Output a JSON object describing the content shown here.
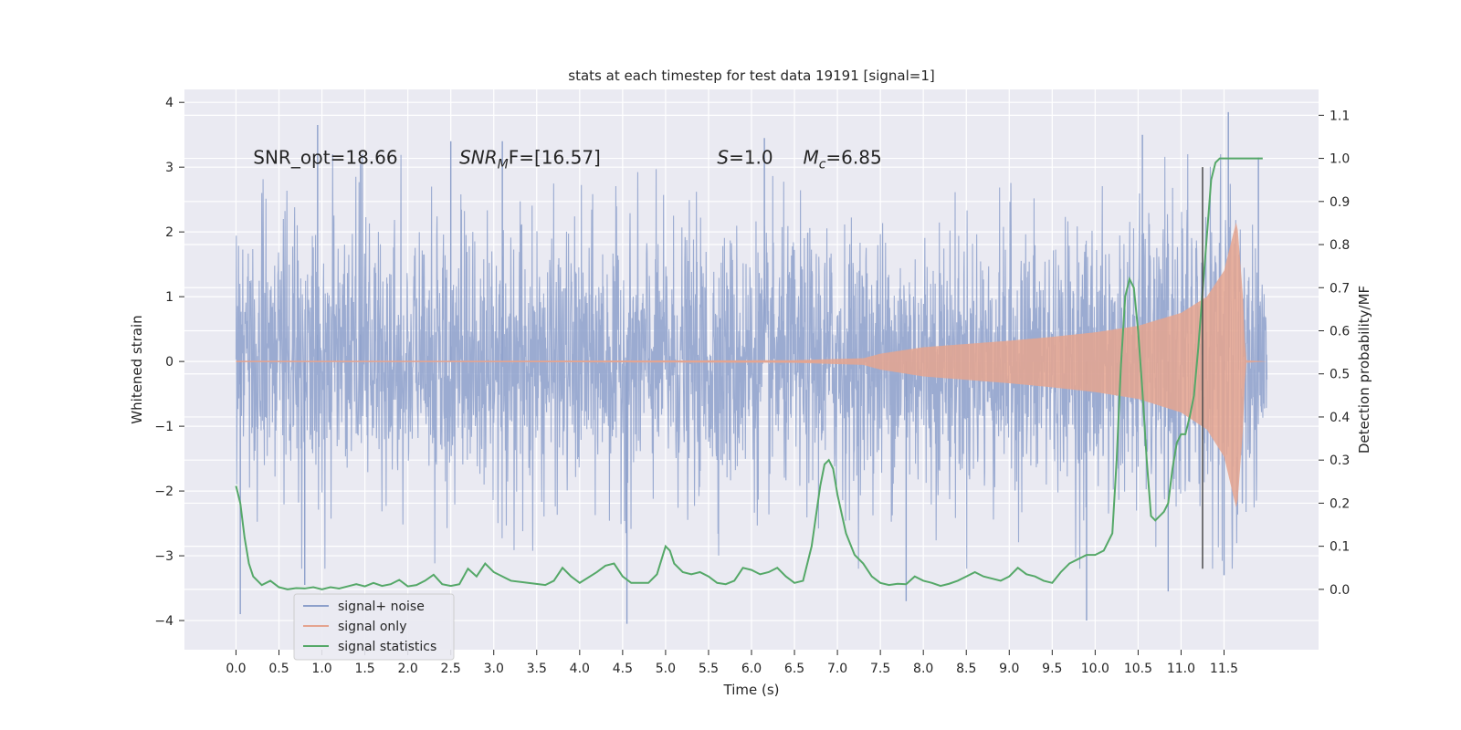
{
  "chart_data": {
    "type": "line",
    "title": "stats at each timestep for test data 19191 [signal=1]",
    "xlabel": "Time (s)",
    "ylabel": "Whitened strain",
    "y2label": "Detection probability/MF",
    "xlim": [
      -0.6,
      12.6
    ],
    "ylim": [
      -4.45,
      4.2
    ],
    "y2lim": [
      -0.14,
      1.16
    ],
    "x_ticks": [
      "0.0",
      "0.5",
      "1.0",
      "1.5",
      "2.0",
      "2.5",
      "3.0",
      "3.5",
      "4.0",
      "4.5",
      "5.0",
      "5.5",
      "6.0",
      "6.5",
      "7.0",
      "7.5",
      "8.0",
      "8.5",
      "9.0",
      "9.5",
      "10.0",
      "10.5",
      "11.0",
      "11.5"
    ],
    "y_ticks": [
      "−4",
      "−3",
      "−2",
      "−1",
      "0",
      "1",
      "2",
      "3",
      "4"
    ],
    "y2_ticks": [
      "0.0",
      "0.1",
      "0.2",
      "0.3",
      "0.4",
      "0.5",
      "0.6",
      "0.7",
      "0.8",
      "0.9",
      "1.0",
      "1.1"
    ],
    "grid": true,
    "legend_position": "lower-left",
    "annotations": [
      {
        "text": "SNR_opt=18.66",
        "x": 0.2,
        "y": 3.05
      },
      {
        "text_main": "SNR",
        "text_sub": "M",
        "text_rest": "F=[16.57]",
        "x": 2.6,
        "y": 3.05
      },
      {
        "text_main": "S",
        "text_rest": "=1.0",
        "x": 5.6,
        "y": 3.05
      },
      {
        "text_main": "M",
        "text_sub": "c",
        "text_rest": "=6.85",
        "x": 6.6,
        "y": 3.05
      }
    ],
    "vline": {
      "x": 11.25,
      "y_range": [
        -3.2,
        3.0
      ],
      "color": "#4c4c4c"
    },
    "series": [
      {
        "name": "signal+ noise",
        "color": "#8da0cb",
        "axis": "left",
        "description_range": [
          0.0,
          12.0
        ],
        "noise_amplitude": 1.0,
        "peaks_max": [
          [
            0.95,
            3.65
          ],
          [
            1.45,
            3.05
          ],
          [
            2.5,
            3.4
          ],
          [
            3.1,
            3.4
          ],
          [
            6.15,
            3.45
          ],
          [
            10.55,
            3.5
          ],
          [
            11.55,
            3.85
          ],
          [
            11.9,
            3.15
          ]
        ],
        "peaks_min": [
          [
            0.05,
            -3.9
          ],
          [
            0.8,
            -3.45
          ],
          [
            4.55,
            -4.05
          ],
          [
            7.8,
            -3.7
          ],
          [
            9.9,
            -4.0
          ],
          [
            10.85,
            -3.55
          ],
          [
            11.5,
            -3.3
          ]
        ]
      },
      {
        "name": "signal only",
        "color": "#e5a48f",
        "axis": "left",
        "envelope": [
          [
            0.0,
            0.0
          ],
          [
            6.5,
            0.02
          ],
          [
            7.3,
            0.05
          ],
          [
            7.5,
            0.12
          ],
          [
            8.0,
            0.22
          ],
          [
            8.5,
            0.27
          ],
          [
            9.0,
            0.32
          ],
          [
            9.5,
            0.38
          ],
          [
            10.0,
            0.45
          ],
          [
            10.5,
            0.55
          ],
          [
            11.0,
            0.75
          ],
          [
            11.3,
            1.0
          ],
          [
            11.5,
            1.4
          ],
          [
            11.65,
            2.2
          ],
          [
            11.72,
            1.0
          ],
          [
            11.75,
            0.02
          ],
          [
            12.0,
            0.0
          ]
        ]
      },
      {
        "name": "signal statistics",
        "color": "#55a868",
        "axis": "right",
        "x": [
          0.0,
          0.05,
          0.1,
          0.15,
          0.2,
          0.3,
          0.4,
          0.5,
          0.6,
          0.7,
          0.8,
          0.9,
          1.0,
          1.1,
          1.2,
          1.3,
          1.4,
          1.5,
          1.6,
          1.7,
          1.8,
          1.9,
          2.0,
          2.1,
          2.2,
          2.3,
          2.4,
          2.5,
          2.6,
          2.7,
          2.8,
          2.9,
          3.0,
          3.2,
          3.4,
          3.6,
          3.7,
          3.8,
          3.9,
          4.0,
          4.2,
          4.3,
          4.4,
          4.5,
          4.6,
          4.8,
          4.9,
          5.0,
          5.05,
          5.1,
          5.2,
          5.3,
          5.4,
          5.5,
          5.6,
          5.7,
          5.8,
          5.9,
          6.0,
          6.1,
          6.2,
          6.3,
          6.4,
          6.5,
          6.6,
          6.7,
          6.8,
          6.85,
          6.9,
          6.95,
          7.0,
          7.1,
          7.2,
          7.3,
          7.4,
          7.5,
          7.6,
          7.7,
          7.8,
          7.9,
          8.0,
          8.1,
          8.2,
          8.3,
          8.4,
          8.5,
          8.6,
          8.7,
          8.8,
          8.9,
          9.0,
          9.1,
          9.2,
          9.3,
          9.4,
          9.5,
          9.6,
          9.7,
          9.8,
          9.9,
          10.0,
          10.1,
          10.2,
          10.25,
          10.3,
          10.35,
          10.4,
          10.45,
          10.5,
          10.55,
          10.6,
          10.65,
          10.7,
          10.8,
          10.85,
          10.9,
          10.95,
          11.0,
          11.05,
          11.1,
          11.15,
          11.2,
          11.25,
          11.3,
          11.35,
          11.4,
          11.45,
          11.5,
          11.6,
          11.7,
          11.8,
          11.9,
          11.95
        ],
        "values": [
          0.24,
          0.2,
          0.12,
          0.06,
          0.03,
          0.01,
          0.02,
          0.005,
          0.0,
          0.003,
          0.002,
          0.005,
          0.0,
          0.005,
          0.002,
          0.007,
          0.012,
          0.007,
          0.015,
          0.008,
          0.012,
          0.022,
          0.007,
          0.01,
          0.02,
          0.034,
          0.012,
          0.008,
          0.012,
          0.048,
          0.03,
          0.06,
          0.04,
          0.02,
          0.015,
          0.01,
          0.02,
          0.05,
          0.03,
          0.015,
          0.04,
          0.055,
          0.06,
          0.03,
          0.015,
          0.015,
          0.035,
          0.1,
          0.09,
          0.06,
          0.04,
          0.035,
          0.04,
          0.03,
          0.015,
          0.012,
          0.02,
          0.05,
          0.045,
          0.035,
          0.04,
          0.05,
          0.03,
          0.015,
          0.02,
          0.1,
          0.24,
          0.29,
          0.3,
          0.28,
          0.22,
          0.13,
          0.08,
          0.06,
          0.03,
          0.015,
          0.01,
          0.013,
          0.012,
          0.03,
          0.02,
          0.015,
          0.008,
          0.013,
          0.02,
          0.03,
          0.04,
          0.03,
          0.025,
          0.02,
          0.03,
          0.05,
          0.035,
          0.03,
          0.02,
          0.015,
          0.04,
          0.06,
          0.07,
          0.08,
          0.08,
          0.09,
          0.13,
          0.3,
          0.52,
          0.68,
          0.72,
          0.7,
          0.6,
          0.46,
          0.3,
          0.17,
          0.16,
          0.18,
          0.2,
          0.28,
          0.34,
          0.36,
          0.36,
          0.4,
          0.45,
          0.56,
          0.69,
          0.82,
          0.95,
          0.99,
          1.0,
          1.0,
          1.0,
          1.0,
          1.0,
          1.0,
          1.0
        ]
      }
    ]
  }
}
